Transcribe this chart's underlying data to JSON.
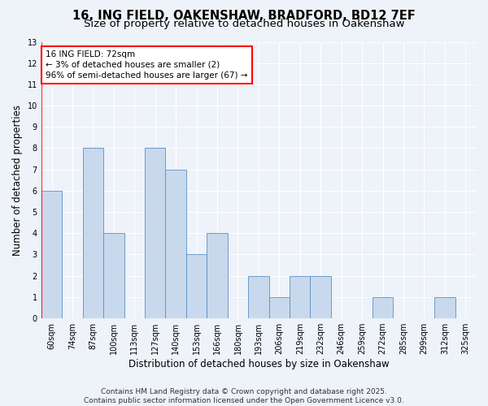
{
  "title_line1": "16, ING FIELD, OAKENSHAW, BRADFORD, BD12 7EF",
  "title_line2": "Size of property relative to detached houses in Oakenshaw",
  "xlabel": "Distribution of detached houses by size in Oakenshaw",
  "ylabel": "Number of detached properties",
  "bar_labels": [
    "60sqm",
    "74sqm",
    "87sqm",
    "100sqm",
    "113sqm",
    "127sqm",
    "140sqm",
    "153sqm",
    "166sqm",
    "180sqm",
    "193sqm",
    "206sqm",
    "219sqm",
    "232sqm",
    "246sqm",
    "259sqm",
    "272sqm",
    "285sqm",
    "299sqm",
    "312sqm",
    "325sqm"
  ],
  "bar_values": [
    6,
    0,
    8,
    4,
    0,
    8,
    7,
    3,
    4,
    0,
    2,
    1,
    2,
    2,
    0,
    0,
    1,
    0,
    0,
    1,
    0
  ],
  "bar_color": "#c9d9ed",
  "bar_edge_color": "#5a8fc3",
  "annotation_text": "16 ING FIELD: 72sqm\n← 3% of detached houses are smaller (2)\n96% of semi-detached houses are larger (67) →",
  "annotation_box_color": "white",
  "annotation_box_edge_color": "red",
  "vline_color": "red",
  "ylim": [
    0,
    13
  ],
  "yticks": [
    0,
    1,
    2,
    3,
    4,
    5,
    6,
    7,
    8,
    9,
    10,
    11,
    12,
    13
  ],
  "bg_color": "#eef2f9",
  "grid_color": "white",
  "footer_line1": "Contains HM Land Registry data © Crown copyright and database right 2025.",
  "footer_line2": "Contains public sector information licensed under the Open Government Licence v3.0.",
  "title_fontsize": 10.5,
  "subtitle_fontsize": 9.5,
  "axis_label_fontsize": 8.5,
  "tick_fontsize": 7,
  "annotation_fontsize": 7.5,
  "footer_fontsize": 6.5
}
